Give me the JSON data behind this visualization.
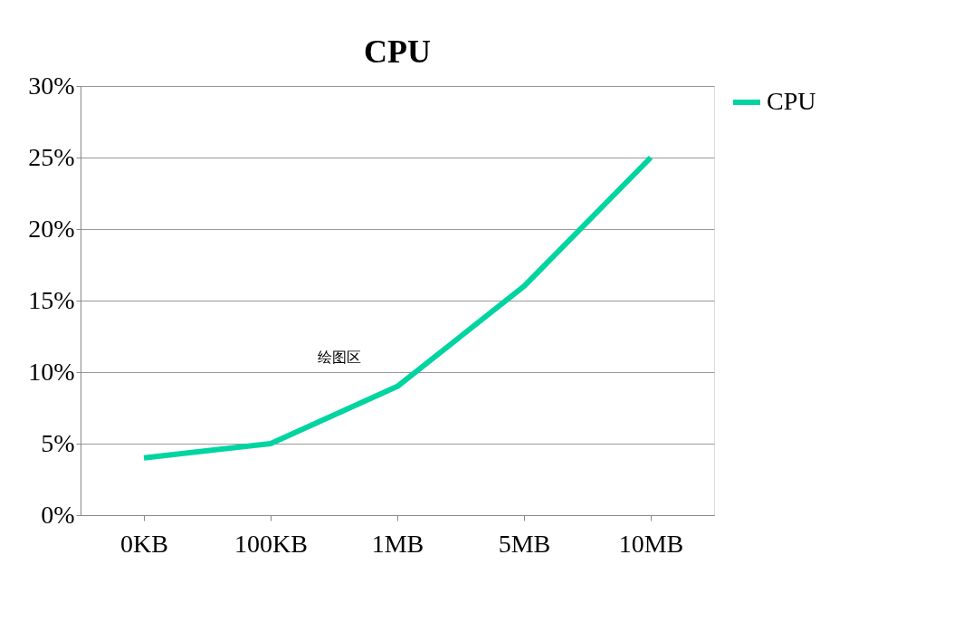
{
  "chart_data": {
    "type": "line",
    "title": "CPU",
    "categories": [
      "0KB",
      "100KB",
      "1MB",
      "5MB",
      "10MB"
    ],
    "series": [
      {
        "name": "CPU",
        "color": "#00d4a0",
        "values": [
          4,
          5,
          9,
          16,
          25
        ]
      }
    ],
    "ylim": [
      0,
      30
    ],
    "yticks": [
      {
        "value": 0,
        "label": "0%"
      },
      {
        "value": 5,
        "label": "5%"
      },
      {
        "value": 10,
        "label": "10%"
      },
      {
        "value": 15,
        "label": "15%"
      },
      {
        "value": 20,
        "label": "20%"
      },
      {
        "value": 25,
        "label": "25%"
      },
      {
        "value": 30,
        "label": "30%"
      }
    ],
    "grid": "y",
    "legend": "right",
    "marker": "none",
    "line_style": "solid",
    "annotations": [
      "绘图区"
    ]
  }
}
